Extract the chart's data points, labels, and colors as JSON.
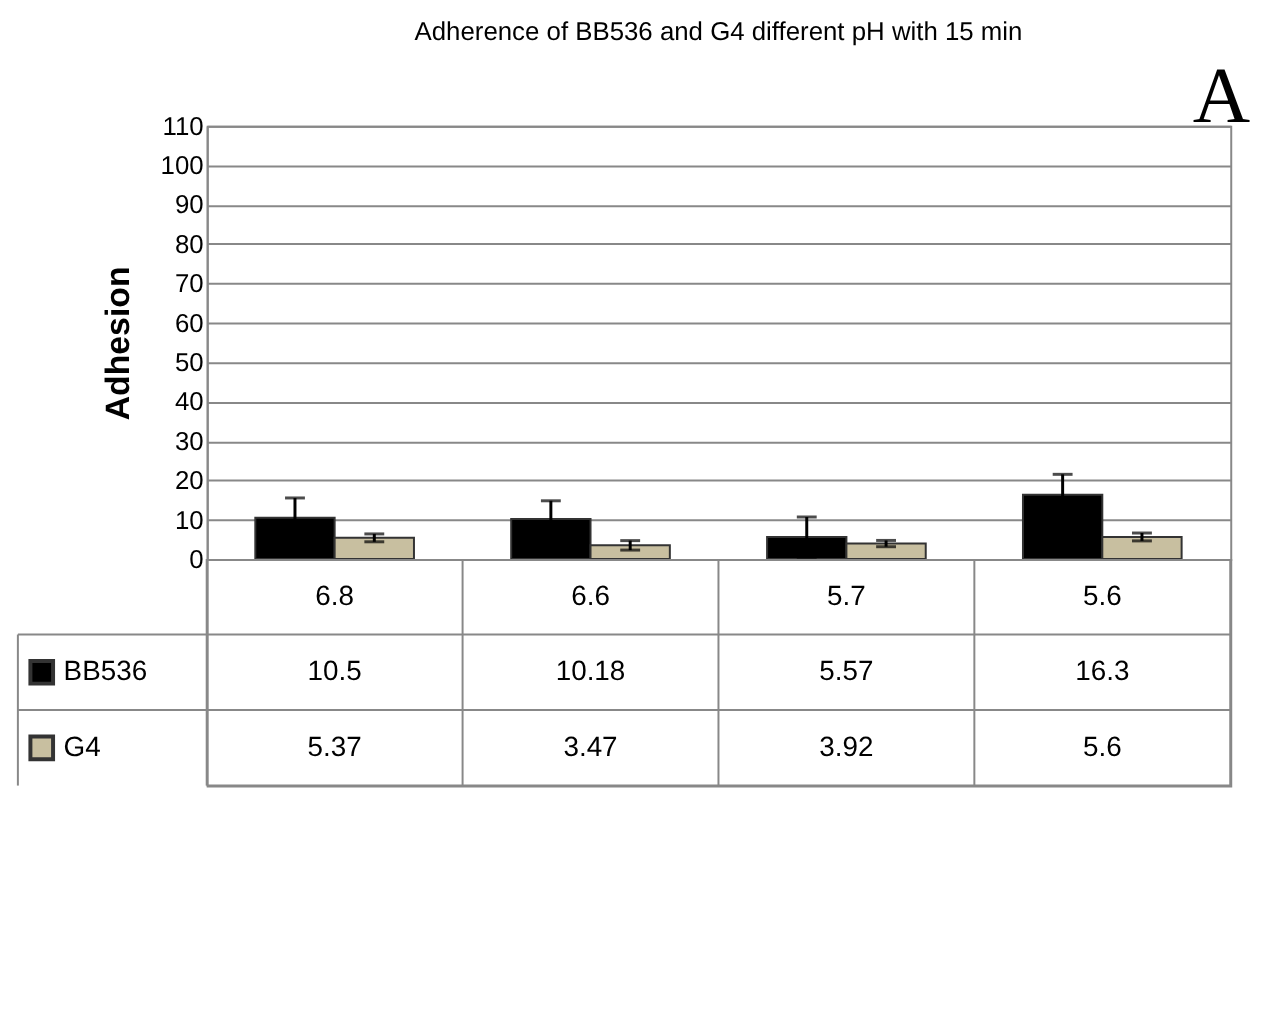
{
  "chart_data": {
    "type": "bar",
    "title": "Adherence of BB536 and G4 different pH with 15 min",
    "ylabel": "Adhesion",
    "categories": [
      "6.8",
      "6.6",
      "5.7",
      "5.6"
    ],
    "series": [
      {
        "name": "BB536",
        "color": "#000000",
        "values": [
          10.5,
          10.18,
          5.57,
          16.3
        ],
        "errors": [
          5,
          4.6,
          5.1,
          5.2
        ]
      },
      {
        "name": "G4",
        "color": "#c8bfa0",
        "values": [
          5.37,
          3.47,
          3.92,
          5.6
        ],
        "errors": [
          1.0,
          1.2,
          0.8,
          1.0
        ]
      }
    ],
    "ylim": [
      0,
      110
    ],
    "yticks": [
      0,
      10,
      20,
      30,
      40,
      50,
      60,
      70,
      80,
      90,
      100,
      110
    ],
    "grid": "y",
    "data_labels": true,
    "legend": "bottom left",
    "annotations": [
      "A"
    ]
  }
}
